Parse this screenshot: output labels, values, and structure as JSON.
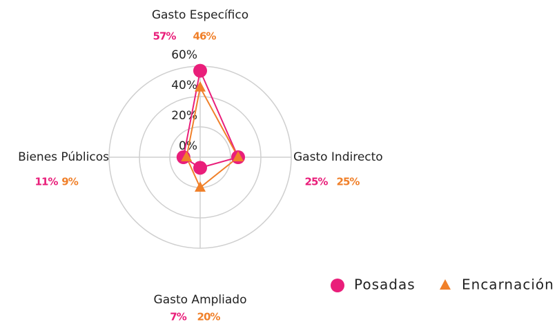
{
  "chart_data": {
    "type": "radar",
    "categories": [
      "Gasto Específico",
      "Gasto Indirecto",
      "Gasto Ampliado",
      "Bienes Públicos"
    ],
    "series": [
      {
        "name": "Posadas",
        "color": "#e91e7a",
        "values": [
          57,
          25,
          7,
          11
        ],
        "value_labels": [
          "57%",
          "25%",
          "7%",
          "11%"
        ]
      },
      {
        "name": "Encarnación",
        "color": "#f0802a",
        "values": [
          46,
          25,
          20,
          9
        ],
        "value_labels": [
          "46%",
          "25%",
          "20%",
          "9%"
        ]
      }
    ],
    "rlim": [
      0,
      60
    ],
    "rticks": [
      {
        "value": 0,
        "label": "0%"
      },
      {
        "value": 20,
        "label": "20%"
      },
      {
        "value": 40,
        "label": "40%"
      },
      {
        "value": 60,
        "label": "60%"
      }
    ],
    "grid": true,
    "legend": "bottom-right"
  }
}
